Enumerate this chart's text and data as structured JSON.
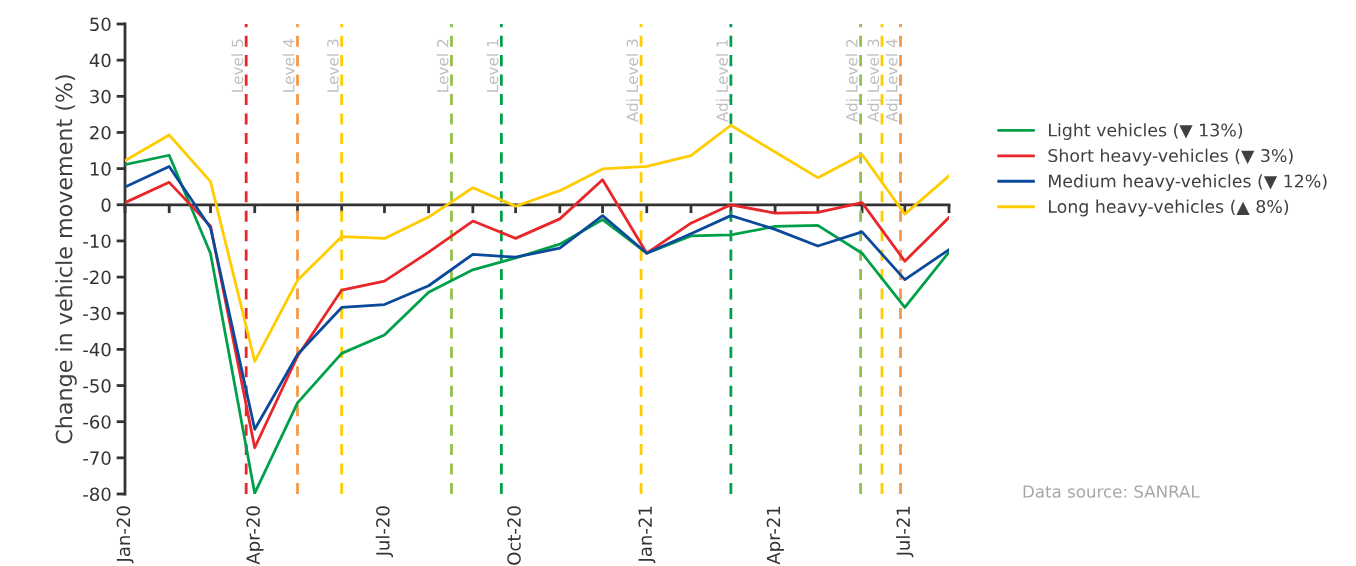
{
  "chart_data": {
    "type": "line",
    "ylabel": "Change in vehicle movement (%)",
    "x": [
      "2020-01",
      "2020-02",
      "2020-03",
      "2020-04",
      "2020-05",
      "2020-06",
      "2020-07",
      "2020-08",
      "2020-09",
      "2020-10",
      "2020-11",
      "2020-12",
      "2021-01",
      "2021-02",
      "2021-03",
      "2021-04",
      "2021-05",
      "2021-06",
      "2021-07",
      "2021-08"
    ],
    "series": [
      {
        "name": "Light vehicles (▼ 13%)",
        "color": "#00a04a",
        "values": [
          11.1,
          13.7,
          -13.5,
          -79.8,
          -54.8,
          -41.1,
          -36.0,
          -24.2,
          -18.0,
          -14.7,
          -10.9,
          -4.1,
          -13.4,
          -8.6,
          -8.3,
          -6.0,
          -5.7,
          -13.4,
          -28.4,
          -13.1
        ]
      },
      {
        "name": "Short heavy-vehicles (▼ 3%)",
        "color": "#e8262b",
        "values": [
          0.6,
          6.2,
          -5.9,
          -67.2,
          -41.9,
          -23.6,
          -21.1,
          -13.1,
          -4.5,
          -9.3,
          -3.9,
          6.9,
          -13.4,
          -5.1,
          0.0,
          -2.3,
          -2.1,
          0.6,
          -15.6,
          -3.5
        ]
      },
      {
        "name": "Medium heavy-vehicles (▼ 12%)",
        "color": "#0b4a9b",
        "values": [
          4.9,
          10.6,
          -6.4,
          -62.1,
          -41.4,
          -28.4,
          -27.6,
          -22.4,
          -13.7,
          -14.5,
          -12.0,
          -3.0,
          -13.4,
          -8.0,
          -3.0,
          -6.8,
          -11.4,
          -7.5,
          -20.7,
          -12.4
        ]
      },
      {
        "name": "Long heavy-vehicles (▲ 8%)",
        "color": "#ffcc00",
        "values": [
          12.2,
          19.3,
          6.4,
          -43.3,
          -20.9,
          -8.8,
          -9.3,
          -3.4,
          4.7,
          -0.4,
          3.9,
          9.9,
          10.6,
          13.6,
          22.0,
          14.6,
          7.5,
          13.9,
          -2.6,
          8.0
        ]
      }
    ],
    "xlim": [
      "2020-01",
      "2021-08"
    ],
    "xticks": [
      {
        "value": "2020-01",
        "label": "Jan-20"
      },
      {
        "value": "2020-02",
        "label": null
      },
      {
        "value": "2020-03",
        "label": null
      },
      {
        "value": "2020-04",
        "label": "Apr-20"
      },
      {
        "value": "2020-05",
        "label": null
      },
      {
        "value": "2020-06",
        "label": null
      },
      {
        "value": "2020-07",
        "label": "Jul-20"
      },
      {
        "value": "2020-08",
        "label": null
      },
      {
        "value": "2020-09",
        "label": null
      },
      {
        "value": "2020-10",
        "label": "Oct-20"
      },
      {
        "value": "2020-11",
        "label": null
      },
      {
        "value": "2020-12",
        "label": null
      },
      {
        "value": "2021-01",
        "label": "Jan-21"
      },
      {
        "value": "2021-02",
        "label": null
      },
      {
        "value": "2021-03",
        "label": null
      },
      {
        "value": "2021-04",
        "label": "Apr-21"
      },
      {
        "value": "2021-05",
        "label": null
      },
      {
        "value": "2021-06",
        "label": null
      },
      {
        "value": "2021-07",
        "label": "Jul-21"
      },
      {
        "value": "2021-08",
        "label": null
      }
    ],
    "ylim": [
      -80,
      50
    ],
    "yticks": [
      -80,
      -70,
      -60,
      -50,
      -40,
      -30,
      -20,
      -10,
      0,
      10,
      20,
      30,
      40,
      50
    ],
    "ref_lines": [
      {
        "axis": "x",
        "value": "2020-03-26",
        "label": "Level 5",
        "color": "#e8262b",
        "line_style": "dashed"
      },
      {
        "axis": "x",
        "value": "2020-05-01",
        "label": "Level 4",
        "color": "#f39a4a",
        "line_style": "dashed"
      },
      {
        "axis": "x",
        "value": "2020-06-01",
        "label": "Level 3",
        "color": "#ffcc00",
        "line_style": "dashed"
      },
      {
        "axis": "x",
        "value": "2020-08-17",
        "label": "Level 2",
        "color": "#92c04a",
        "line_style": "dashed"
      },
      {
        "axis": "x",
        "value": "2020-09-21",
        "label": "Level 1",
        "color": "#00a04a",
        "line_style": "dashed"
      },
      {
        "axis": "x",
        "value": "2020-12-28",
        "label": "Adj Level 3",
        "color": "#ffcc00",
        "line_style": "dashed"
      },
      {
        "axis": "x",
        "value": "2021-03-01",
        "label": "Adj Level 1",
        "color": "#00a04a",
        "line_style": "dashed"
      },
      {
        "axis": "x",
        "value": "2021-05-31",
        "label": "Adj Level 2",
        "color": "#92c04a",
        "line_style": "dashed"
      },
      {
        "axis": "x",
        "value": "2021-06-15",
        "label": "Adj Level 3",
        "color": "#ffcc00",
        "line_style": "dashed"
      },
      {
        "axis": "x",
        "value": "2021-06-28",
        "label": "Adj Level 4",
        "color": "#f39a4a",
        "line_style": "dashed"
      }
    ],
    "annotations": [
      "Data source: SANRAL"
    ],
    "legend": "right",
    "grid": false,
    "line_style": "solid",
    "marker": "none"
  }
}
